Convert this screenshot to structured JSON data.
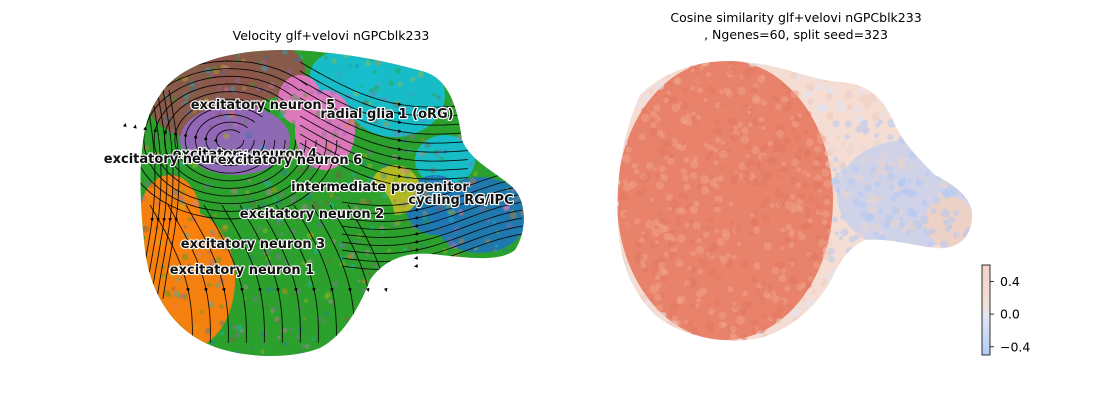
{
  "chart_data": [
    {
      "type": "scatter",
      "title": "Velocity glf+velovi nGPCblk233",
      "xlabel": "",
      "ylabel": "",
      "grid": false,
      "overlay": "velocity streamlines",
      "clusters": [
        {
          "name": "excitatory neuron 5",
          "color": "#8c564b"
        },
        {
          "name": "radial glia 1 (oRG)",
          "color": "#17becf"
        },
        {
          "name": "excitatory neuron 4",
          "color": "#9467bd"
        },
        {
          "name": "excitatory neuron 7",
          "color": "#9467bd"
        },
        {
          "name": "excitatory neuron 6",
          "color": "#e377c2"
        },
        {
          "name": "intermediate progenitor",
          "color": "#bcbd22"
        },
        {
          "name": "cycling RG/IPC",
          "color": "#1f77b4"
        },
        {
          "name": "excitatory neuron 2",
          "color": "#2ca02c"
        },
        {
          "name": "excitatory neuron 3",
          "color": "#2ca02c"
        },
        {
          "name": "excitatory neuron 1",
          "color": "#ff7f0e"
        }
      ]
    },
    {
      "type": "scatter",
      "title_line1": "Cosine similarity glf+velovi nGPCblk233",
      "title_line2": ", Ngenes=60, split seed=323",
      "xlabel": "",
      "ylabel": "",
      "grid": false,
      "colorbar": {
        "cmap": "coolwarm",
        "ticks": [
          0.4,
          0.0,
          -0.4
        ],
        "tick_labels": [
          "0.4",
          "0.0",
          "−0.4"
        ],
        "range": [
          -0.5,
          0.6
        ]
      },
      "colors": {
        "high": "#e8826a",
        "mid": "#f2d5c9",
        "low": "#b7cdf5"
      }
    }
  ]
}
